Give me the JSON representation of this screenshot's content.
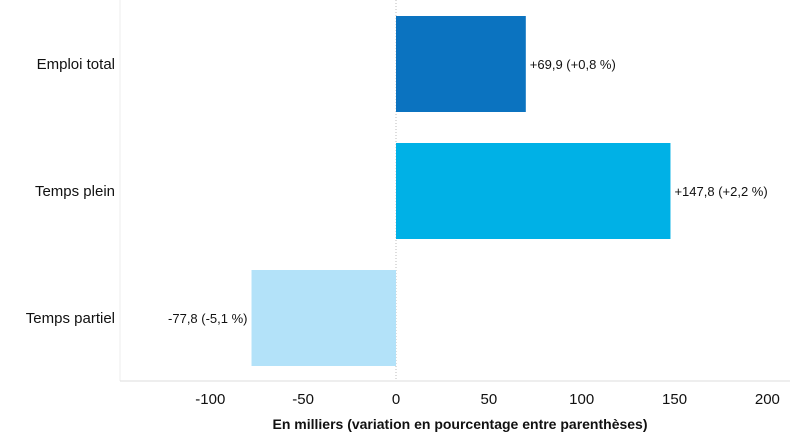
{
  "chart_data": {
    "type": "bar",
    "orientation": "horizontal",
    "categories": [
      "Emploi total",
      "Temps plein",
      "Temps partiel"
    ],
    "values": [
      69.9,
      147.8,
      -77.8
    ],
    "data_labels": [
      "+69,9 (+0,8 %)",
      "+147,8 (+2,2 %)",
      "-77,8 (-5,1 %)"
    ],
    "colors": [
      "#0b73c0",
      "#00b1e6",
      "#b3e2f9"
    ],
    "xlabel": "En milliers (variation en pourcentage entre parenthèses)",
    "xlim": [
      -150,
      215
    ],
    "x_ticks": [
      -100,
      -50,
      0,
      50,
      100,
      150,
      200
    ],
    "x_tick_labels": [
      "-100",
      "-50",
      "0",
      "50",
      "100",
      "150",
      "200"
    ],
    "grid": false
  }
}
